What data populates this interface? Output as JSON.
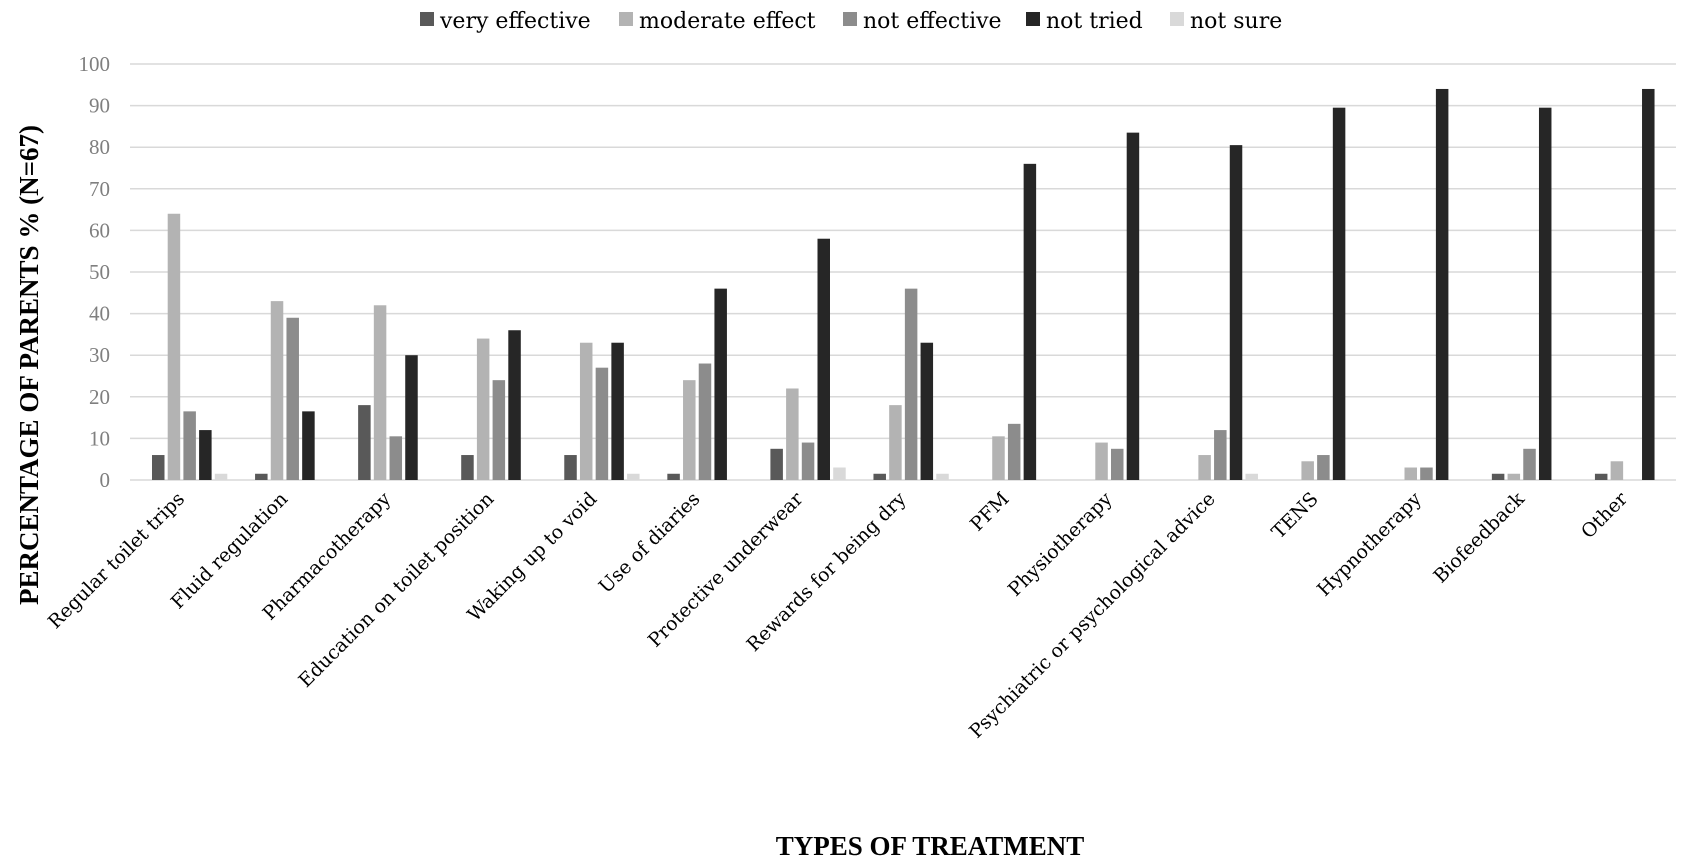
{
  "chart_data": {
    "type": "bar",
    "title": "",
    "xlabel": "TYPES OF TREATMENT",
    "ylabel": "PERCENTAGE OF PARENTS % (N=67)",
    "ylim": [
      0,
      100
    ],
    "yticks": [
      0,
      10,
      20,
      30,
      40,
      50,
      60,
      70,
      80,
      90,
      100
    ],
    "grid": true,
    "legend_position": "top",
    "categories": [
      "Regular toilet trips",
      "Fluid regulation",
      "Pharmacotherapy",
      "Education on toilet position",
      "Waking up to void",
      "Use of diaries",
      "Protective underwear",
      "Rewards for being dry",
      "PFM",
      "Physiotherapy",
      "Psychiatric or psychological advice",
      "TENS",
      "Hypnotherapy",
      "Biofeedback",
      "Other"
    ],
    "series": [
      {
        "name": "very effective",
        "color": "#595959",
        "values": [
          6,
          1.5,
          18,
          6,
          6,
          1.5,
          7.5,
          1.5,
          0,
          0,
          0,
          0,
          0,
          1.5,
          1.5
        ]
      },
      {
        "name": "moderate effect",
        "color": "#b3b3b3",
        "values": [
          64,
          43,
          42,
          34,
          33,
          24,
          22,
          18,
          10.5,
          9,
          6,
          4.5,
          3,
          1.5,
          4.5
        ]
      },
      {
        "name": "not effective",
        "color": "#8c8c8c",
        "values": [
          16.5,
          39,
          10.5,
          24,
          27,
          28,
          9,
          46,
          13.5,
          7.5,
          12,
          6,
          3,
          7.5,
          0
        ]
      },
      {
        "name": "not tried",
        "color": "#262626",
        "values": [
          12,
          16.5,
          30,
          36,
          33,
          46,
          58,
          33,
          76,
          83.5,
          80.5,
          89.5,
          94,
          89.5,
          94
        ]
      },
      {
        "name": "not sure",
        "color": "#d9d9d9",
        "values": [
          1.5,
          0,
          0,
          0,
          1.5,
          0,
          3,
          1.5,
          0,
          0,
          1.5,
          0,
          0,
          0,
          0
        ]
      }
    ]
  }
}
